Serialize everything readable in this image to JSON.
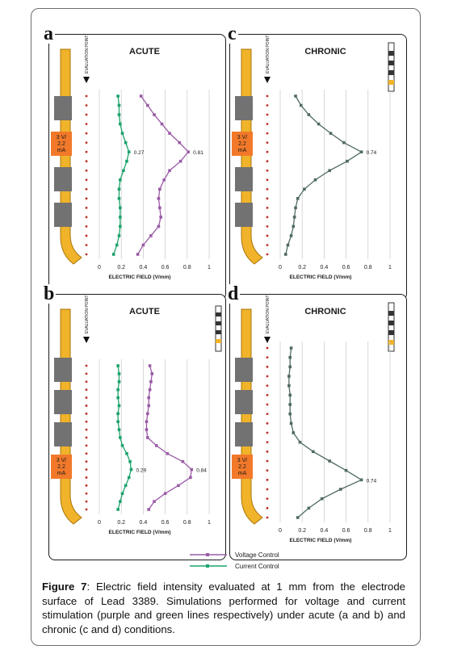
{
  "chart_data": [
    {
      "type": "line",
      "panel_letter": "a",
      "title": "ACUTE",
      "xlabel": "ELECTRIC FIELD (V/mm)",
      "xlim": [
        0,
        1
      ],
      "x_ticks": [
        "0",
        "0.2",
        "0.4",
        "0.6",
        "0.8",
        "1"
      ],
      "probe_label": "EVALUATION POINTS",
      "electrode_label": [
        "3 V/",
        "2.2",
        "mA"
      ],
      "series": [
        {
          "name": "Voltage Control",
          "color": "#9a5ba5",
          "values": [
            0.38,
            0.44,
            0.5,
            0.57,
            0.64,
            0.73,
            0.81,
            0.74,
            0.64,
            0.59,
            0.55,
            0.54,
            0.55,
            0.56,
            0.54,
            0.47,
            0.4,
            0.35
          ]
        },
        {
          "name": "Current Control",
          "color": "#1ea36c",
          "values": [
            0.17,
            0.18,
            0.18,
            0.19,
            0.21,
            0.24,
            0.27,
            0.25,
            0.22,
            0.19,
            0.18,
            0.18,
            0.19,
            0.19,
            0.19,
            0.18,
            0.16,
            0.13
          ]
        }
      ],
      "annotations": [
        {
          "text": "0.27",
          "series": 1,
          "point": 6
        },
        {
          "text": "0.81",
          "series": 0,
          "point": 6
        }
      ]
    },
    {
      "type": "line",
      "panel_letter": "b",
      "title": "ACUTE",
      "xlabel": "ELECTRIC FIELD (V/mm)",
      "xlim": [
        0,
        1
      ],
      "x_ticks": [
        "0",
        "0.2",
        "0.4",
        "0.6",
        "0.8",
        "1"
      ],
      "probe_label": "EVALUATION POINTS",
      "electrode_label": [
        "3 V/",
        "2.2",
        "mA"
      ],
      "series": [
        {
          "name": "Voltage Control",
          "color": "#9a5ba5",
          "values": [
            0.46,
            0.48,
            0.47,
            0.46,
            0.45,
            0.45,
            0.44,
            0.43,
            0.43,
            0.44,
            0.52,
            0.62,
            0.76,
            0.84,
            0.83,
            0.72,
            0.6,
            0.5,
            0.45
          ]
        },
        {
          "name": "Current Control",
          "color": "#1ea36c",
          "values": [
            0.17,
            0.18,
            0.18,
            0.17,
            0.17,
            0.18,
            0.17,
            0.17,
            0.18,
            0.19,
            0.21,
            0.25,
            0.28,
            0.29,
            0.27,
            0.24,
            0.21,
            0.19,
            0.17
          ]
        }
      ],
      "annotations": [
        {
          "text": "0.29",
          "series": 1,
          "point": 13
        },
        {
          "text": "0.84",
          "series": 0,
          "point": 13
        }
      ]
    },
    {
      "type": "line",
      "panel_letter": "c",
      "title": "CHRONIC",
      "xlabel": "ELECTRIC FIELD (V/mm)",
      "xlim": [
        0,
        1
      ],
      "x_ticks": [
        "0",
        "0.2",
        "0.4",
        "0.6",
        "0.8",
        "1"
      ],
      "probe_label": "EVALUATION POINTS",
      "electrode_label": [
        "3 V/",
        "2.2",
        "mA"
      ],
      "series": [
        {
          "name": "Chronic",
          "color": "#4f6b5e",
          "values": [
            0.14,
            0.19,
            0.26,
            0.35,
            0.46,
            0.58,
            0.74,
            0.61,
            0.45,
            0.32,
            0.22,
            0.16,
            0.14,
            0.13,
            0.12,
            0.1,
            0.07,
            0.05
          ]
        }
      ],
      "annotations": [
        {
          "text": "0.74",
          "series": 0,
          "point": 6
        }
      ]
    },
    {
      "type": "line",
      "panel_letter": "d",
      "title": "CHRONIC",
      "xlabel": "ELECTRIC FIELD (V/mm)",
      "xlim": [
        0,
        1
      ],
      "x_ticks": [
        "0",
        "0.2",
        "0.4",
        "0.6",
        "0.8",
        "1"
      ],
      "probe_label": "EVALUATION POINTS",
      "electrode_label": [
        "3 V/",
        "2.2",
        "mA"
      ],
      "series": [
        {
          "name": "Chronic",
          "color": "#4f6b5e",
          "values": [
            0.1,
            0.09,
            0.09,
            0.08,
            0.08,
            0.09,
            0.09,
            0.09,
            0.1,
            0.12,
            0.18,
            0.3,
            0.45,
            0.6,
            0.74,
            0.55,
            0.38,
            0.26,
            0.16
          ]
        }
      ],
      "annotations": [
        {
          "text": "0.74",
          "series": 0,
          "point": 14
        }
      ]
    }
  ],
  "legend": {
    "items": [
      {
        "label": "Voltage Control",
        "color": "#9a5ba5"
      },
      {
        "label": "Current Control",
        "color": "#1ea36c"
      }
    ]
  },
  "caption": {
    "label": "Figure 7",
    "text": ": Electric field intensity evaluated at 1 mm from the electrode surface of Lead 3389. Simulations performed for voltage and current stimulation (purple and green lines respectively) under acute (a and b) and chronic (c and d) conditions."
  },
  "colors": {
    "lead": "#f0b32a",
    "lead_edge": "#a87408",
    "contact": "#727272",
    "active_contact": "#f2792a",
    "probe_point": "#c0302a"
  }
}
